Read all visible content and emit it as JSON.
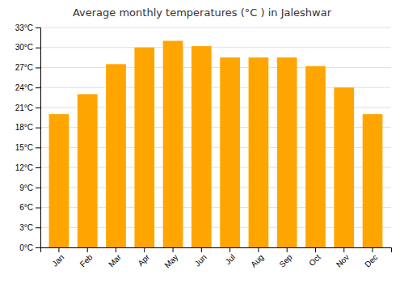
{
  "chart_data": {
    "type": "bar",
    "title": "Average monthly temperatures (°C ) in Jaleshwar",
    "categories": [
      "Jan",
      "Feb",
      "Mar",
      "Apr",
      "May",
      "Jun",
      "Jul",
      "Aug",
      "Sep",
      "Oct",
      "Nov",
      "Dec"
    ],
    "values": [
      20,
      23,
      27.5,
      30,
      31,
      30.2,
      28.5,
      28.5,
      28.5,
      27.2,
      24,
      20
    ],
    "color": "#FFA500",
    "ylim": [
      0,
      33
    ],
    "yticks": [
      {
        "value": 0,
        "label": "0°C"
      },
      {
        "value": 3,
        "label": "3°C"
      },
      {
        "value": 6,
        "label": "6°C"
      },
      {
        "value": 9,
        "label": "9°C"
      },
      {
        "value": 12,
        "label": "12°C"
      },
      {
        "value": 15,
        "label": "15°C"
      },
      {
        "value": 18,
        "label": "18°C"
      },
      {
        "value": 21,
        "label": "21°C"
      },
      {
        "value": 24,
        "label": "24°C"
      },
      {
        "value": 27,
        "label": "27°C"
      },
      {
        "value": 30,
        "label": "30°C"
      },
      {
        "value": 33,
        "label": "33°C"
      }
    ],
    "grid": true
  }
}
